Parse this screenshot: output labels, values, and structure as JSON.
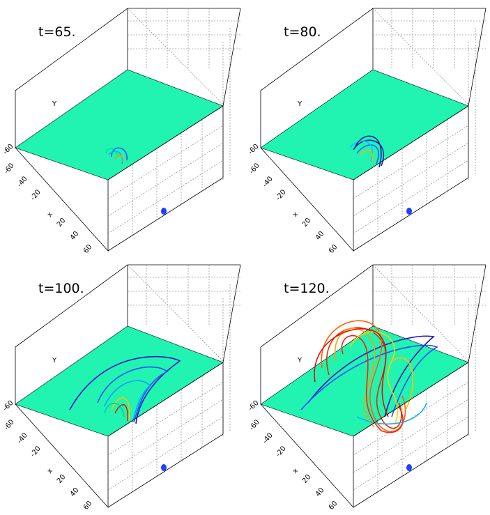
{
  "panels": [
    {
      "title": "t=65."
    },
    {
      "title": "t=80."
    },
    {
      "title": "t=100."
    },
    {
      "title": "t=120."
    }
  ],
  "axes": {
    "x_label": "x",
    "y_label": "Y",
    "y_tick": "-60",
    "x_ticks": [
      "-60",
      "-40",
      "-20",
      "20",
      "40",
      "60"
    ]
  }
}
